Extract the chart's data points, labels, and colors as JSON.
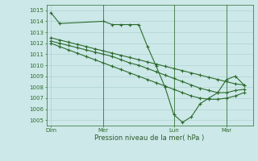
{
  "bg_color": "#cce8e8",
  "grid_color": "#aacece",
  "line_color": "#2d6b2d",
  "marker_color": "#2d6b2d",
  "xlabel": "Pression niveau de la mer( hPa )",
  "xlabel_color": "#2d5a2d",
  "ylim": [
    1004.5,
    1015.5
  ],
  "yticks": [
    1005,
    1006,
    1007,
    1008,
    1009,
    1010,
    1011,
    1012,
    1013,
    1014,
    1015
  ],
  "x_day_labels": [
    "Dim",
    "Mer",
    "Lun",
    "Mar"
  ],
  "day_positions": [
    1,
    7,
    15,
    21
  ],
  "series1_x": [
    1,
    2,
    7,
    8,
    9,
    10,
    11,
    12,
    13,
    14,
    15,
    16,
    17,
    18,
    19,
    20,
    21,
    22,
    23
  ],
  "series1_y": [
    1014.8,
    1013.8,
    1014.0,
    1013.7,
    1013.7,
    1013.7,
    1013.7,
    1011.7,
    1009.9,
    1008.0,
    1005.5,
    1004.8,
    1005.3,
    1006.5,
    1007.0,
    1007.5,
    1008.7,
    1009.0,
    1008.2
  ],
  "series2_x": [
    1,
    2,
    3,
    4,
    5,
    6,
    7,
    8,
    9,
    10,
    11,
    12,
    13,
    14,
    15,
    16,
    17,
    18,
    19,
    20,
    21,
    22,
    23
  ],
  "series2_y": [
    1012.5,
    1012.3,
    1012.1,
    1011.9,
    1011.7,
    1011.5,
    1011.3,
    1011.1,
    1010.9,
    1010.7,
    1010.5,
    1010.3,
    1010.1,
    1009.9,
    1009.7,
    1009.5,
    1009.3,
    1009.1,
    1008.9,
    1008.7,
    1008.5,
    1008.3,
    1008.2
  ],
  "series3_x": [
    1,
    2,
    3,
    4,
    5,
    6,
    7,
    8,
    9,
    10,
    11,
    12,
    13,
    14,
    15,
    16,
    17,
    18,
    19,
    20,
    21,
    22,
    23
  ],
  "series3_y": [
    1012.2,
    1012.0,
    1011.8,
    1011.6,
    1011.4,
    1011.2,
    1011.0,
    1010.8,
    1010.5,
    1010.2,
    1010.0,
    1009.7,
    1009.4,
    1009.1,
    1008.8,
    1008.5,
    1008.2,
    1007.9,
    1007.7,
    1007.5,
    1007.5,
    1007.7,
    1007.8
  ],
  "series4_x": [
    1,
    2,
    3,
    4,
    5,
    6,
    7,
    8,
    9,
    10,
    11,
    12,
    13,
    14,
    15,
    16,
    17,
    18,
    19,
    20,
    21,
    22,
    23
  ],
  "series4_y": [
    1012.0,
    1011.7,
    1011.4,
    1011.1,
    1010.8,
    1010.5,
    1010.2,
    1009.9,
    1009.6,
    1009.3,
    1009.0,
    1008.7,
    1008.4,
    1008.1,
    1007.8,
    1007.5,
    1007.2,
    1007.0,
    1006.9,
    1006.9,
    1007.0,
    1007.2,
    1007.5
  ],
  "xlim": [
    0.5,
    24
  ],
  "n_points": 24
}
